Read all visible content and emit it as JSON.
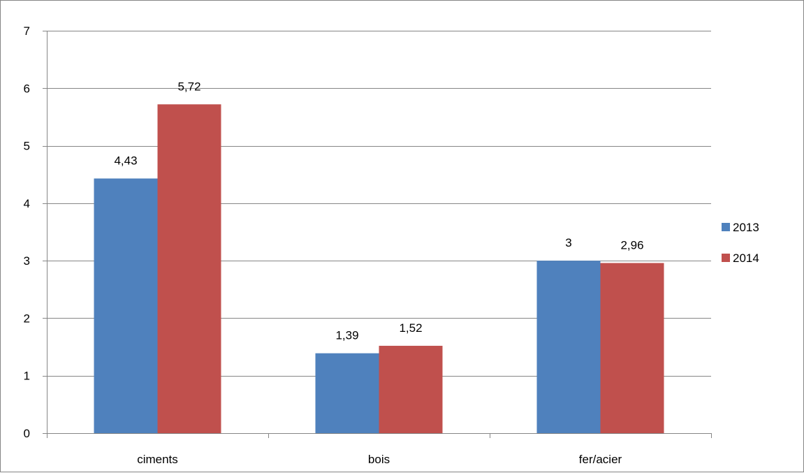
{
  "chart_data": {
    "type": "bar",
    "categories": [
      "ciments",
      "bois",
      "fer/acier"
    ],
    "series": [
      {
        "name": "2013",
        "values": [
          4.43,
          1.39,
          3
        ],
        "labels": [
          "4,43",
          "1,39",
          "3"
        ],
        "color": "#4F81BD"
      },
      {
        "name": "2014",
        "values": [
          5.72,
          1.52,
          2.96
        ],
        "labels": [
          "5,72",
          "1,52",
          "2,96"
        ],
        "color": "#C0504D"
      }
    ],
    "ylim": [
      0,
      7
    ],
    "yticks": [
      0,
      1,
      2,
      3,
      4,
      5,
      6,
      7
    ],
    "ytick_labels": [
      "0",
      "1",
      "2",
      "3",
      "4",
      "5",
      "6",
      "7"
    ],
    "title": "",
    "xlabel": "",
    "ylabel": "",
    "grid": true,
    "legend_position": "right"
  },
  "colors": {
    "gridline": "#868686",
    "axis": "#868686",
    "border": "#868686"
  }
}
